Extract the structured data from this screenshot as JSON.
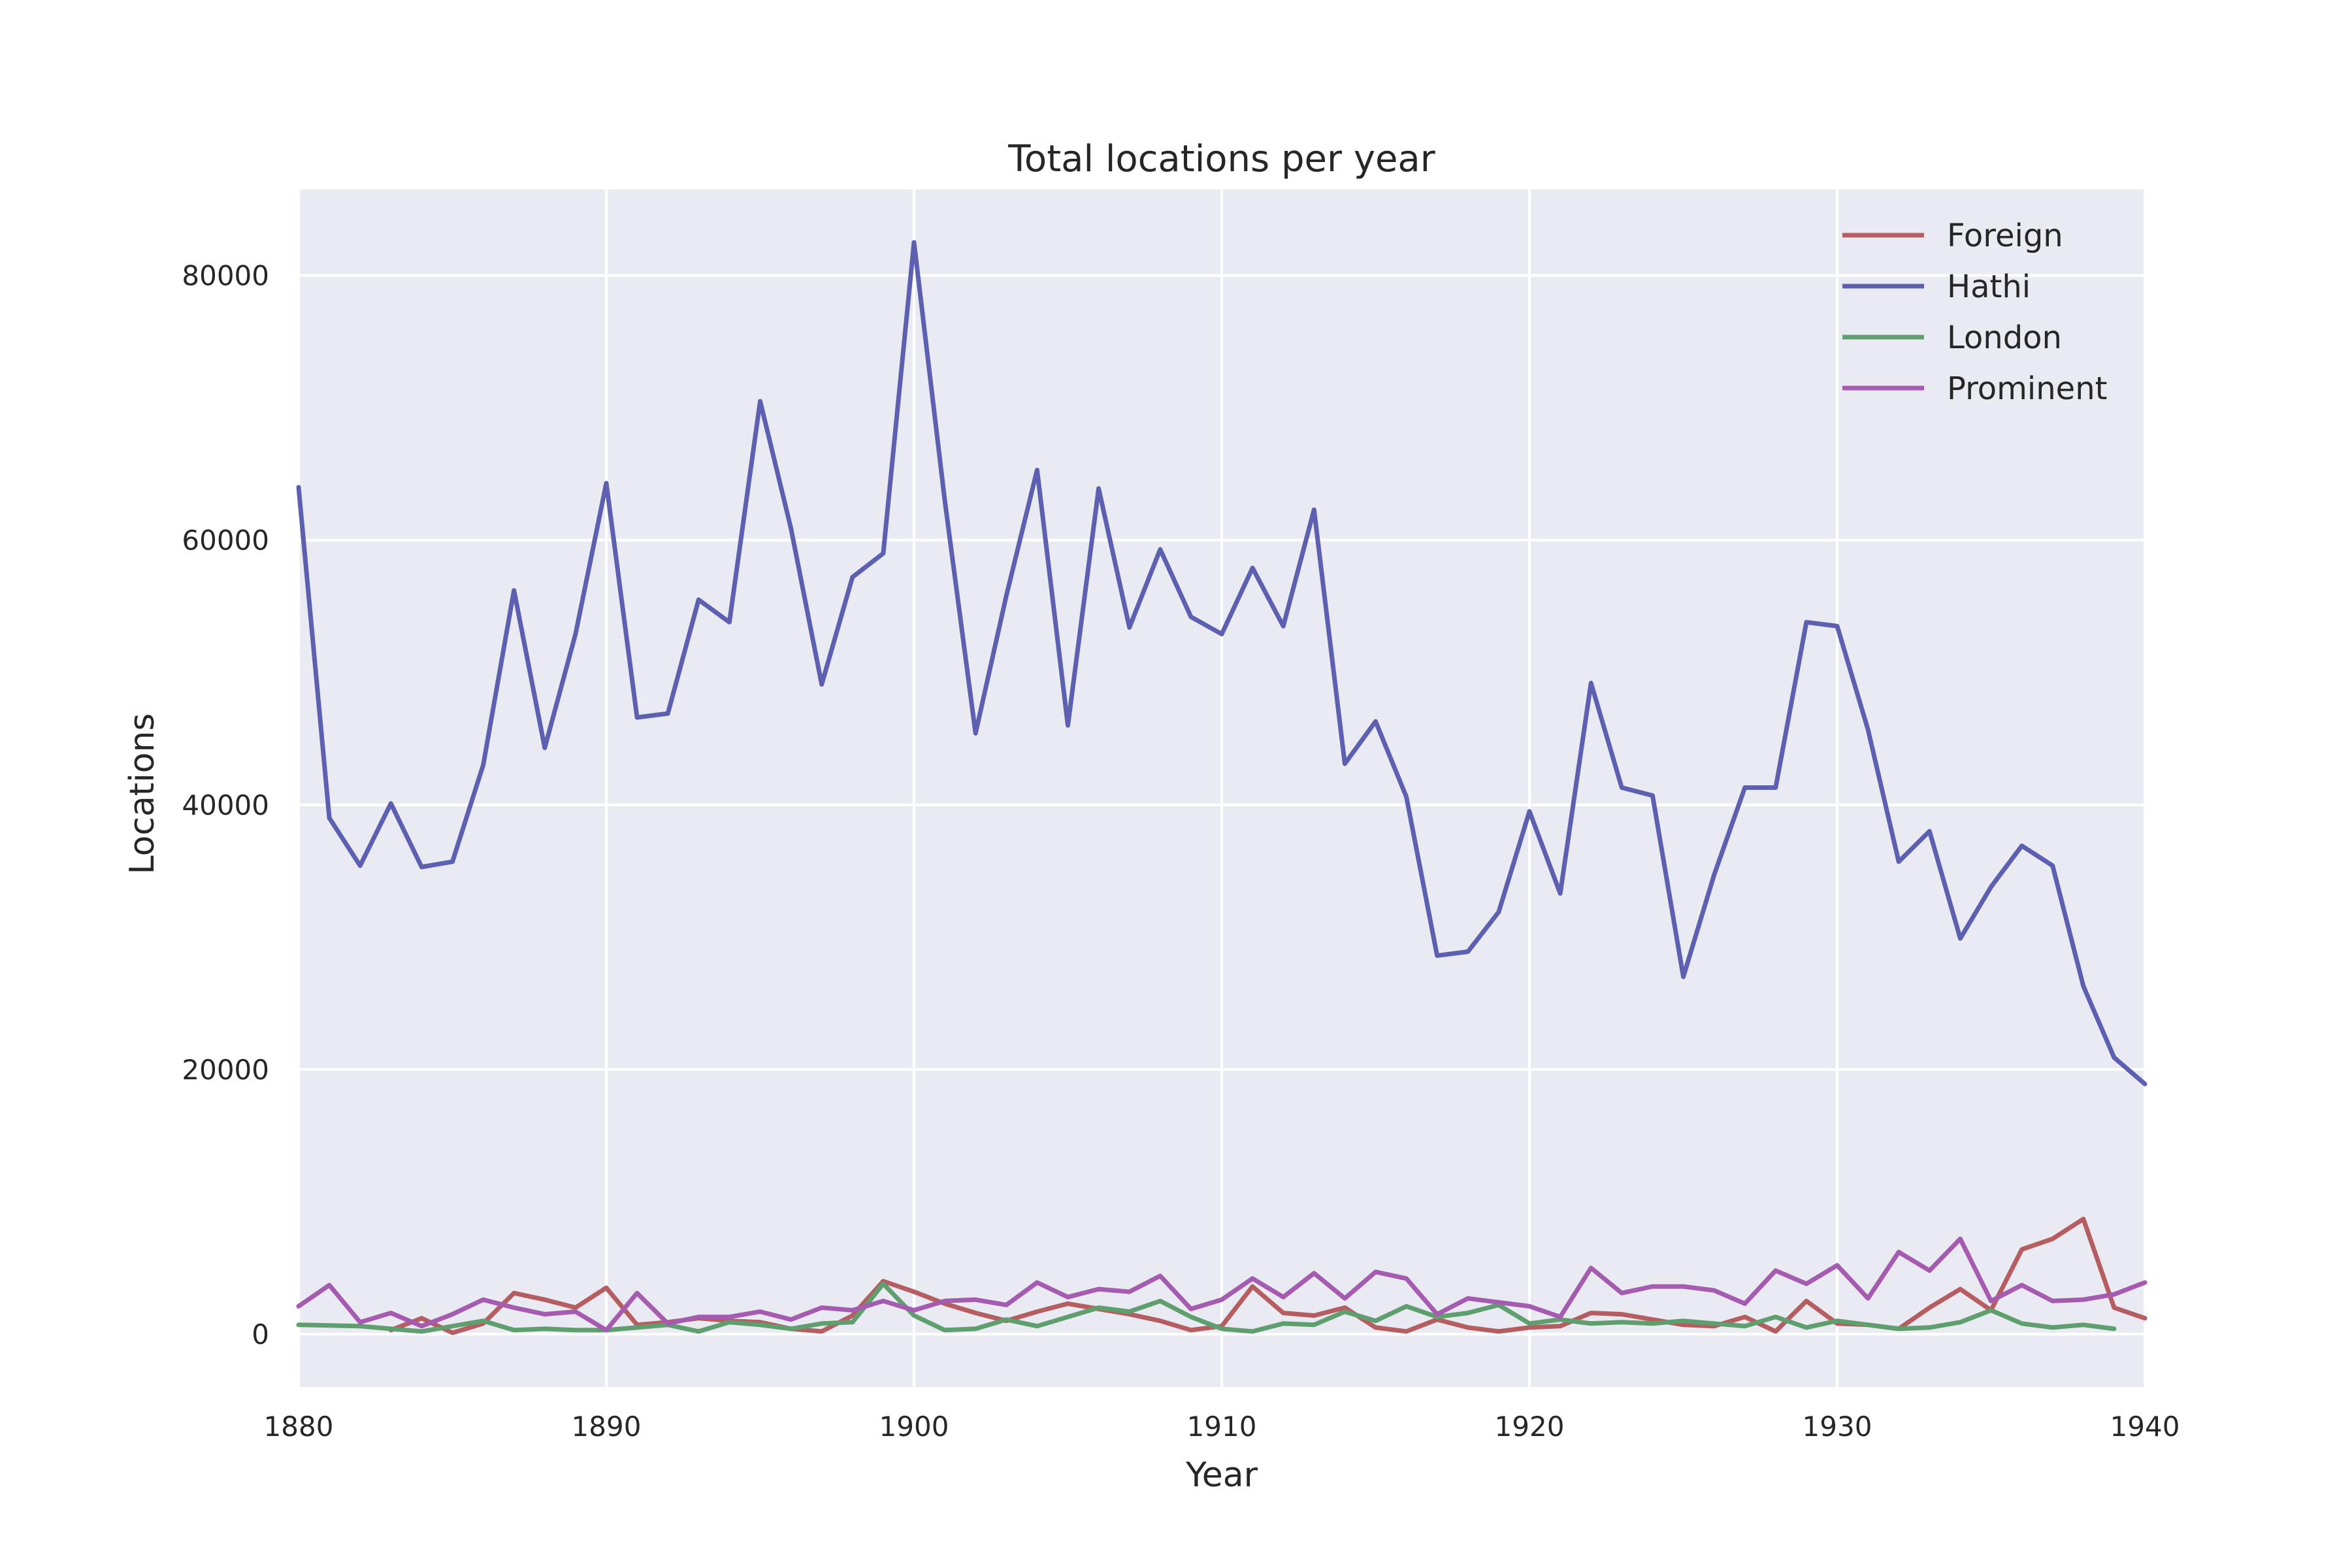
{
  "chart_data": {
    "type": "line",
    "title": "Total locations per year",
    "xlabel": "Year",
    "ylabel": "Locations",
    "xlim": [
      1880,
      1940
    ],
    "ylim": [
      -4000,
      86500
    ],
    "xticks": [
      1880,
      1890,
      1900,
      1910,
      1920,
      1930,
      1940
    ],
    "yticks": [
      0,
      20000,
      40000,
      60000,
      80000
    ],
    "grid": true,
    "legend_position": "top-right",
    "background": "#eaeaf2",
    "series": [
      {
        "name": "Foreign",
        "color": "#b55d60",
        "x": [
          1883,
          1884,
          1885,
          1886,
          1887,
          1888,
          1889,
          1890,
          1891,
          1892,
          1893,
          1894,
          1895,
          1896,
          1897,
          1898,
          1899,
          1900,
          1901,
          1902,
          1903,
          1904,
          1905,
          1906,
          1907,
          1908,
          1909,
          1910,
          1911,
          1912,
          1913,
          1914,
          1915,
          1916,
          1917,
          1918,
          1919,
          1920,
          1921,
          1922,
          1923,
          1924,
          1925,
          1926,
          1927,
          1928,
          1929,
          1930,
          1931,
          1932,
          1933,
          1934,
          1935,
          1936,
          1937,
          1938,
          1939,
          1940
        ],
        "y": [
          300,
          1200,
          100,
          800,
          3100,
          2600,
          2000,
          3500,
          700,
          900,
          1200,
          1000,
          900,
          400,
          200,
          1400,
          4000,
          3200,
          2300,
          1600,
          1000,
          1700,
          2300,
          1900,
          1500,
          1000,
          300,
          600,
          3600,
          1600,
          1400,
          2000,
          500,
          200,
          1100,
          500,
          200,
          500,
          600,
          1600,
          1500,
          1100,
          700,
          600,
          1300,
          200,
          2500,
          800,
          700,
          400,
          2000,
          3400,
          1800,
          6400,
          7200,
          8700,
          2000,
          1200
        ]
      },
      {
        "name": "Hathi",
        "color": "#5d5fb1",
        "x": [
          1880,
          1881,
          1882,
          1883,
          1884,
          1885,
          1886,
          1887,
          1888,
          1889,
          1890,
          1891,
          1892,
          1893,
          1894,
          1895,
          1896,
          1897,
          1898,
          1899,
          1900,
          1901,
          1902,
          1903,
          1904,
          1905,
          1906,
          1907,
          1908,
          1909,
          1910,
          1911,
          1912,
          1913,
          1914,
          1915,
          1916,
          1917,
          1918,
          1919,
          1920,
          1921,
          1922,
          1923,
          1924,
          1925,
          1926,
          1927,
          1928,
          1929,
          1930,
          1931,
          1932,
          1933,
          1934,
          1935,
          1936,
          1937,
          1938,
          1939,
          1940
        ],
        "y": [
          64000,
          39000,
          35400,
          40100,
          35300,
          35700,
          43000,
          56200,
          44300,
          52900,
          64300,
          46600,
          46900,
          55500,
          53800,
          70500,
          60900,
          49100,
          57200,
          59000,
          82500,
          63000,
          45400,
          55800,
          65300,
          46000,
          63900,
          53400,
          59300,
          54200,
          52900,
          57900,
          53500,
          62300,
          43100,
          46300,
          40600,
          28600,
          28900,
          31900,
          39500,
          33300,
          49200,
          41300,
          40700,
          27000,
          34700,
          41300,
          41300,
          53800,
          53500,
          45700,
          35700,
          38000,
          29900,
          33800,
          36900,
          35400,
          26300,
          20900,
          18900
        ]
      },
      {
        "name": "London",
        "color": "#5f9e6e",
        "x": [
          1880,
          1881,
          1882,
          1883,
          1884,
          1885,
          1886,
          1887,
          1888,
          1889,
          1890,
          1891,
          1892,
          1893,
          1894,
          1895,
          1896,
          1897,
          1898,
          1899,
          1900,
          1901,
          1902,
          1903,
          1904,
          1905,
          1906,
          1907,
          1908,
          1909,
          1910,
          1911,
          1912,
          1913,
          1914,
          1915,
          1916,
          1917,
          1918,
          1919,
          1920,
          1921,
          1922,
          1923,
          1924,
          1925,
          1926,
          1927,
          1928,
          1929,
          1930,
          1931,
          1932,
          1933,
          1934,
          1935,
          1936,
          1937,
          1938,
          1939
        ],
        "y": [
          700,
          650,
          600,
          400,
          200,
          600,
          1000,
          300,
          400,
          300,
          300,
          500,
          700,
          200,
          900,
          700,
          400,
          800,
          900,
          3800,
          1400,
          300,
          400,
          1100,
          600,
          1300,
          2000,
          1700,
          2500,
          1300,
          400,
          200,
          800,
          700,
          1700,
          1000,
          2100,
          1300,
          1600,
          2200,
          800,
          1100,
          800,
          900,
          800,
          1000,
          800,
          600,
          1300,
          500,
          1000,
          700,
          400,
          500,
          900,
          1800,
          800,
          500,
          700,
          400
        ]
      },
      {
        "name": "Prominent",
        "color": "#a55bb0",
        "x": [
          1880,
          1881,
          1882,
          1883,
          1884,
          1885,
          1886,
          1887,
          1888,
          1889,
          1890,
          1891,
          1892,
          1893,
          1894,
          1895,
          1896,
          1897,
          1898,
          1899,
          1900,
          1901,
          1902,
          1903,
          1904,
          1905,
          1906,
          1907,
          1908,
          1909,
          1910,
          1911,
          1912,
          1913,
          1914,
          1915,
          1916,
          1917,
          1918,
          1919,
          1920,
          1921,
          1922,
          1923,
          1924,
          1925,
          1926,
          1927,
          1928,
          1929,
          1930,
          1931,
          1932,
          1933,
          1934,
          1935,
          1936,
          1937,
          1938,
          1939,
          1940
        ],
        "y": [
          2100,
          3700,
          900,
          1600,
          600,
          1500,
          2600,
          2000,
          1500,
          1700,
          300,
          3100,
          800,
          1300,
          1300,
          1700,
          1100,
          2000,
          1800,
          2500,
          1800,
          2500,
          2600,
          2200,
          3900,
          2800,
          3400,
          3200,
          4400,
          1900,
          2600,
          4200,
          2800,
          4600,
          2700,
          4700,
          4200,
          1500,
          2700,
          2400,
          2100,
          1300,
          5000,
          3100,
          3600,
          3600,
          3300,
          2300,
          4800,
          3800,
          5200,
          2700,
          6200,
          4800,
          7200,
          2500,
          3700,
          2500,
          2600,
          3000,
          3900
        ]
      }
    ]
  }
}
